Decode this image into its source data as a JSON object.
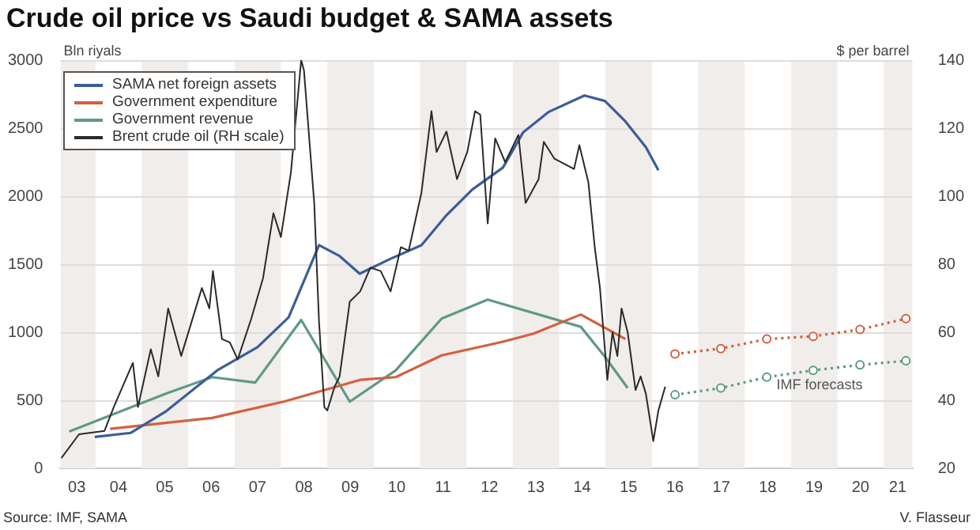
{
  "chart_data": {
    "type": "line",
    "title": "Crude oil price vs Saudi budget & SAMA assets",
    "ylabel": "Bln riyals",
    "y2label": "$ per barrel",
    "annotations": [
      {
        "text": "IMF forecasts",
        "x": "2019-06-24",
        "y": 720
      },
      "Source: IMF, SAMA",
      "V. Flasseur"
    ],
    "xlim": [
      "2003-04-01",
      "2021-08-15"
    ],
    "xticks": [
      {
        "value": "2003-08-08",
        "label": "03"
      },
      {
        "value": "2004-07-01",
        "label": "04"
      },
      {
        "value": "2005-07-01",
        "label": "05"
      },
      {
        "value": "2006-07-01",
        "label": "06"
      },
      {
        "value": "2007-07-01",
        "label": "07"
      },
      {
        "value": "2008-07-01",
        "label": "08"
      },
      {
        "value": "2009-07-01",
        "label": "09"
      },
      {
        "value": "2010-07-01",
        "label": "10"
      },
      {
        "value": "2011-07-01",
        "label": "11"
      },
      {
        "value": "2012-07-01",
        "label": "12"
      },
      {
        "value": "2013-07-01",
        "label": "13"
      },
      {
        "value": "2014-07-01",
        "label": "14"
      },
      {
        "value": "2015-07-01",
        "label": "15"
      },
      {
        "value": "2016-07-01",
        "label": "16"
      },
      {
        "value": "2017-07-01",
        "label": "17"
      },
      {
        "value": "2018-07-01",
        "label": "18"
      },
      {
        "value": "2019-07-01",
        "label": "19"
      },
      {
        "value": "2020-07-01",
        "label": "20"
      },
      {
        "value": "2021-04-20",
        "label": "21"
      }
    ],
    "ylim": [
      0,
      3000
    ],
    "yticks": [
      0,
      500,
      1000,
      1500,
      2000,
      2500,
      3000
    ],
    "y2lim": [
      20,
      140
    ],
    "y2ticks": [
      20,
      40,
      60,
      80,
      100,
      120,
      140
    ],
    "grid": "y",
    "legend": "top left",
    "marker": "none",
    "line_style": "solid",
    "bands": [
      {
        "axis": "x",
        "from": "2003-04-01",
        "to": "2004",
        "color": "#f1edeb"
      },
      {
        "axis": "x",
        "from": "2005",
        "to": "2006",
        "color": "#f1edeb"
      },
      {
        "axis": "x",
        "from": "2007",
        "to": "2008",
        "color": "#f1edeb"
      },
      {
        "axis": "x",
        "from": "2009",
        "to": "2010",
        "color": "#f1edeb"
      },
      {
        "axis": "x",
        "from": "2011",
        "to": "2012",
        "color": "#f1edeb"
      },
      {
        "axis": "x",
        "from": "2013",
        "to": "2014",
        "color": "#f1edeb"
      },
      {
        "axis": "x",
        "from": "2015",
        "to": "2016",
        "color": "#f1edeb"
      },
      {
        "axis": "x",
        "from": "2017",
        "to": "2018",
        "color": "#f1edeb"
      },
      {
        "axis": "x",
        "from": "2019",
        "to": "2020",
        "color": "#f1edeb"
      },
      {
        "axis": "x",
        "from": "2021",
        "to": "2021-08-15",
        "color": "#f1edeb"
      }
    ],
    "series": [
      {
        "name": "SAMA net foreign assets",
        "color": "#3b5e99",
        "x": [
          "2003-12-27",
          "2004-10-04",
          "2005-07-12",
          "2006-08-18",
          "2007-07-01",
          "2008-03-02",
          "2008-10-28",
          "2009-04-08",
          "2009-09-13",
          "2010-05-14",
          "2011-01-12",
          "2011-07-28",
          "2012-02-18",
          "2012-10-15",
          "2013-03-24",
          "2013-10-12",
          "2014-07-19",
          "2014-12-27",
          "2015-06-06",
          "2015-11-14",
          "2016-02-21"
        ],
        "values": [
          230,
          260,
          420,
          720,
          890,
          1110,
          1640,
          1560,
          1430,
          1540,
          1640,
          1860,
          2050,
          2210,
          2470,
          2620,
          2740,
          2700,
          2550,
          2360,
          2190
        ]
      },
      {
        "name": "Government expenditure",
        "color": "#d4603e",
        "x": [
          "2004-04-26",
          "2006-07-08",
          "2008-01-23",
          "2009-09-17",
          "2010-06-24",
          "2011-06-20",
          "2012-10-15",
          "2013-06-13",
          "2014-06-20",
          "2015-06-06"
        ],
        "values": [
          290,
          370,
          490,
          650,
          670,
          830,
          930,
          990,
          1130,
          950
        ]
      },
      {
        "name": "Government revenue",
        "color": "#5e9a86",
        "x": [
          "2003-06-09",
          "2005-07-12",
          "2006-07-08",
          "2007-06-13",
          "2008-06-09",
          "2009-06-27",
          "2010-06-24",
          "2011-06-20",
          "2012-06-17",
          "2014-06-20",
          "2014-12-27",
          "2015-06-24"
        ],
        "values": [
          270,
          550,
          670,
          630,
          1090,
          490,
          720,
          1100,
          1240,
          1040,
          820,
          590
        ]
      },
      {
        "name": "Brent crude oil (RH scale)",
        "color": "#2a2a2a",
        "axis": "y2",
        "x": [
          "2003-04-08",
          "2003-08-25",
          "2004-03-13",
          "2004-05-25",
          "2004-10-23",
          "2004-12-02",
          "2005-03-13",
          "2005-05-11",
          "2005-07-28",
          "2005-11-07",
          "2006-04-19",
          "2006-06-17",
          "2006-07-15",
          "2006-09-24",
          "2006-11-25",
          "2007-01-26",
          "2007-05-13",
          "2007-08-14",
          "2007-11-03",
          "2008-01-01",
          "2008-03-20",
          "2008-06-09",
          "2008-07-01",
          "2008-09-20",
          "2008-10-28",
          "2008-12-09",
          "2009-01-01",
          "2009-02-28",
          "2009-04-08",
          "2009-06-27",
          "2009-09-17",
          "2009-12-06",
          "2010-02-25",
          "2010-05-14",
          "2010-08-03",
          "2010-10-04",
          "2011-01-12",
          "2011-04-01",
          "2011-05-11",
          "2011-07-28",
          "2011-10-19",
          "2012-01-08",
          "2012-03-09",
          "2012-04-19",
          "2012-06-17",
          "2012-08-15",
          "2012-11-02",
          "2013-02-14",
          "2013-04-12",
          "2013-07-23",
          "2013-09-02",
          "2013-11-25",
          "2014-04-28",
          "2014-06-09",
          "2014-08-19",
          "2014-10-08",
          "2014-11-18",
          "2015-01-15",
          "2015-02-25",
          "2015-04-04",
          "2015-05-07",
          "2015-06-24",
          "2015-08-25",
          "2015-10-04",
          "2015-11-14",
          "2016-01-12",
          "2016-02-21",
          "2016-04-15"
        ],
        "values": [
          23,
          30,
          31,
          38,
          51,
          38,
          55,
          47,
          67,
          53,
          73,
          67,
          78,
          58,
          57,
          52,
          64,
          76,
          95,
          88,
          107,
          140,
          137,
          98,
          63,
          38,
          37,
          44,
          47,
          69,
          72,
          79,
          78,
          72,
          85,
          84,
          101,
          125,
          113,
          119,
          105,
          113,
          125,
          124,
          92,
          117,
          110,
          118,
          98,
          105,
          116,
          111,
          108,
          115,
          104,
          85,
          73,
          46,
          60,
          53,
          67,
          60,
          43,
          47,
          42,
          28,
          37,
          44
        ]
      },
      {
        "color": "#d4603e",
        "line_style": "dotted",
        "marker": "circle",
        "x": [
          "2016-07-01",
          "2017-06-27",
          "2018-06-24",
          "2019-06-24",
          "2020-06-27",
          "2021-06-24"
        ],
        "values": [
          840,
          880,
          950,
          970,
          1020,
          1100
        ]
      },
      {
        "color": "#5e9a86",
        "line_style": "dotted",
        "marker": "circle",
        "x": [
          "2016-07-01",
          "2017-06-27",
          "2018-06-24",
          "2019-06-24",
          "2020-06-27",
          "2021-06-24"
        ],
        "values": [
          540,
          590,
          670,
          720,
          760,
          790
        ]
      }
    ]
  }
}
